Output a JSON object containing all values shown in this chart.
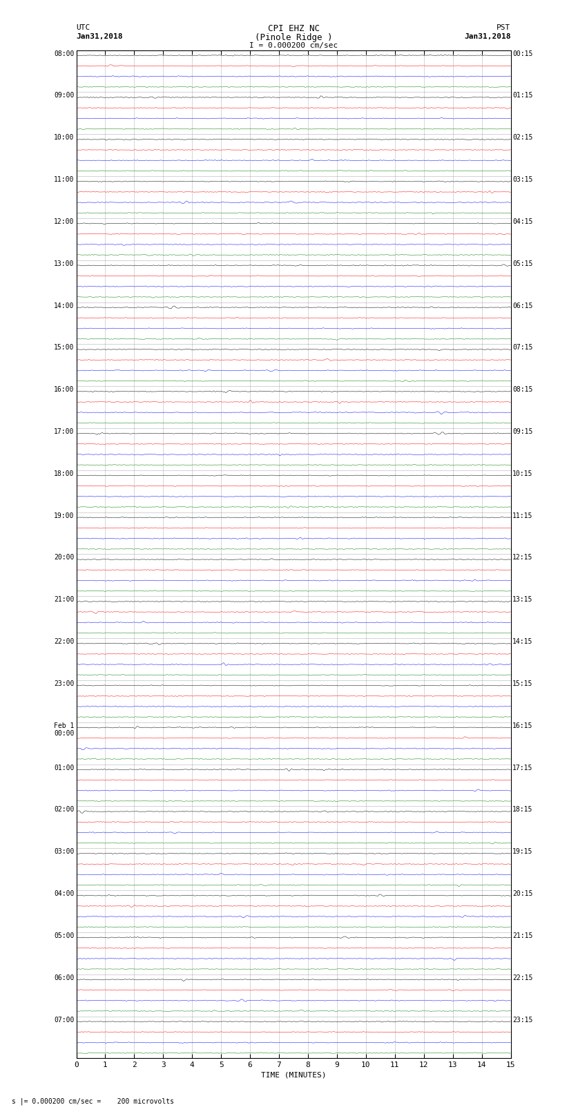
{
  "title_line1": "CPI EHZ NC",
  "title_line2": "(Pinole Ridge )",
  "scale_label": "I = 0.000200 cm/sec",
  "left_label_top": "UTC",
  "left_label_date": "Jan31,2018",
  "right_label_top": "PST",
  "right_label_date": "Jan31,2018",
  "bottom_label": "TIME (MINUTES)",
  "footnote": "s |= 0.000200 cm/sec =    200 microvolts",
  "utc_hour_labels": [
    "08:00",
    "09:00",
    "10:00",
    "11:00",
    "12:00",
    "13:00",
    "14:00",
    "15:00",
    "16:00",
    "17:00",
    "18:00",
    "19:00",
    "20:00",
    "21:00",
    "22:00",
    "23:00",
    "Feb 1\n00:00",
    "01:00",
    "02:00",
    "03:00",
    "04:00",
    "05:00",
    "06:00",
    "07:00"
  ],
  "pst_hour_labels": [
    "00:15",
    "01:15",
    "02:15",
    "03:15",
    "04:15",
    "05:15",
    "06:15",
    "07:15",
    "08:15",
    "09:15",
    "10:15",
    "11:15",
    "12:15",
    "13:15",
    "14:15",
    "15:15",
    "16:15",
    "17:15",
    "18:15",
    "19:15",
    "20:15",
    "21:15",
    "22:15",
    "23:15"
  ],
  "trace_colors": [
    "black",
    "red",
    "blue",
    "green"
  ],
  "n_traces_per_hour": 4,
  "n_hours": 24,
  "minutes": 15,
  "x_ticks": [
    0,
    1,
    2,
    3,
    4,
    5,
    6,
    7,
    8,
    9,
    10,
    11,
    12,
    13,
    14,
    15
  ],
  "bg_color": "white",
  "grid_color": "#888888",
  "amplitude_scale": 0.06,
  "noise_seed": 42,
  "fig_width": 8.5,
  "fig_height": 16.13,
  "dpi": 100
}
